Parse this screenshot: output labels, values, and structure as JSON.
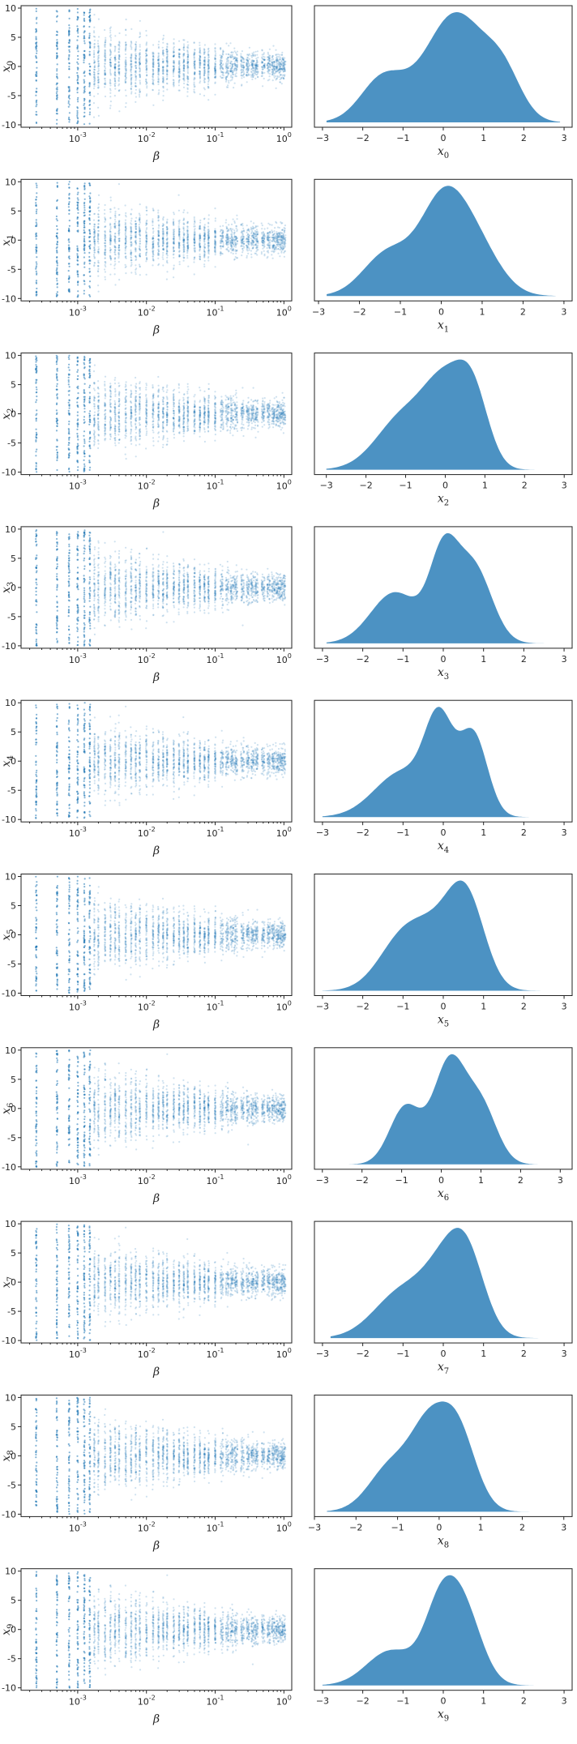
{
  "figure": {
    "rows": 10,
    "colors": {
      "point": "#1f77b4",
      "kde": "#1f77b4",
      "kde_fill_opacity": 0.8
    }
  },
  "chart_data": [
    {
      "type": "scatter",
      "xlabel": "β",
      "xscale": "log",
      "x_ticks": [
        "10^-3",
        "10^-2",
        "10^-1",
        "10^0"
      ],
      "y_ticks": [
        10,
        5,
        0,
        -5,
        -10
      ],
      "ylim": [
        -10,
        10
      ],
      "xlim": [
        0.00015,
        1.3
      ],
      "beta_levels": [
        0.00025,
        0.0005,
        0.00075,
        0.001,
        0.00125,
        0.0015,
        0.00175,
        0.002,
        0.0025,
        0.003,
        0.0035,
        0.004,
        0.005,
        0.006,
        0.007,
        0.008,
        0.01,
        0.0125,
        0.015,
        0.0175,
        0.02,
        0.025,
        0.03,
        0.035,
        0.04,
        0.05,
        0.06,
        0.07,
        0.08,
        0.1,
        0.125,
        0.15,
        0.175,
        0.2,
        0.25,
        0.3,
        0.35,
        0.4,
        0.5,
        0.6,
        0.7,
        0.8,
        0.9,
        1.0
      ],
      "panels": [
        {
          "ylabel": "x",
          "sub": "0"
        },
        {
          "ylabel": "x",
          "sub": "1"
        },
        {
          "ylabel": "x",
          "sub": "2"
        },
        {
          "ylabel": "x",
          "sub": "3"
        },
        {
          "ylabel": "x",
          "sub": "4"
        },
        {
          "ylabel": "x",
          "sub": "5"
        },
        {
          "ylabel": "x",
          "sub": "6"
        },
        {
          "ylabel": "x",
          "sub": "7"
        },
        {
          "ylabel": "x",
          "sub": "8"
        },
        {
          "ylabel": "x",
          "sub": "9"
        }
      ]
    },
    {
      "type": "area",
      "description_type": "kde",
      "x_ticks": [
        "-3",
        "-2",
        "-1",
        "0",
        "1",
        "2",
        "3"
      ],
      "panels": [
        {
          "xlabel": "x",
          "sub": "0",
          "xlim": [
            -3.2,
            3.2
          ],
          "range": [
            -2.9,
            2.9
          ],
          "components": [
            [
              -1.5,
              0.55,
              0.4
            ],
            [
              0.3,
              0.75,
              1.0
            ],
            [
              1.5,
              0.45,
              0.35
            ]
          ]
        },
        {
          "xlabel": "x",
          "sub": "1",
          "xlim": [
            -3.1,
            3.2
          ],
          "range": [
            -2.8,
            2.8
          ],
          "components": [
            [
              -1.3,
              0.6,
              0.5
            ],
            [
              0.0,
              0.55,
              0.95
            ],
            [
              0.8,
              0.6,
              0.6
            ]
          ]
        },
        {
          "xlabel": "x",
          "sub": "2",
          "xlim": [
            -3.3,
            3.2
          ],
          "range": [
            -3.0,
            2.9
          ],
          "components": [
            [
              -1.0,
              0.7,
              0.6
            ],
            [
              0.0,
              0.5,
              0.75
            ],
            [
              0.7,
              0.4,
              0.75
            ]
          ]
        },
        {
          "xlabel": "x",
          "sub": "3",
          "xlim": [
            -3.2,
            3.2
          ],
          "range": [
            -2.9,
            2.8
          ],
          "components": [
            [
              -1.2,
              0.6,
              0.5
            ],
            [
              0.0,
              0.35,
              0.8
            ],
            [
              0.75,
              0.45,
              0.75
            ]
          ]
        },
        {
          "xlabel": "x",
          "sub": "4",
          "xlim": [
            -3.2,
            3.2
          ],
          "range": [
            -3.0,
            3.0
          ],
          "components": [
            [
              -1.0,
              0.7,
              0.45
            ],
            [
              -0.1,
              0.35,
              0.85
            ],
            [
              0.75,
              0.35,
              0.8
            ]
          ]
        },
        {
          "xlabel": "x",
          "sub": "5",
          "xlim": [
            -3.2,
            3.2
          ],
          "range": [
            -3.0,
            2.8
          ],
          "components": [
            [
              -1.0,
              0.6,
              0.6
            ],
            [
              0.0,
              0.6,
              0.6
            ],
            [
              0.6,
              0.45,
              0.85
            ]
          ]
        },
        {
          "xlabel": "x",
          "sub": "6",
          "xlim": [
            -3.2,
            3.3
          ],
          "range": [
            -3.0,
            3.1
          ],
          "components": [
            [
              -0.9,
              0.4,
              0.55
            ],
            [
              0.2,
              0.4,
              0.95
            ],
            [
              1.0,
              0.4,
              0.55
            ]
          ]
        },
        {
          "xlabel": "x",
          "sub": "7",
          "xlim": [
            -3.2,
            3.2
          ],
          "range": [
            -2.8,
            2.9
          ],
          "components": [
            [
              -1.0,
              0.7,
              0.55
            ],
            [
              0.0,
              0.5,
              0.6
            ],
            [
              0.6,
              0.45,
              0.85
            ]
          ]
        },
        {
          "xlabel": "x",
          "sub": "8",
          "xlim": [
            -3.0,
            3.2
          ],
          "range": [
            -2.7,
            2.9
          ],
          "components": [
            [
              -1.1,
              0.55,
              0.5
            ],
            [
              -0.3,
              0.4,
              0.6
            ],
            [
              0.4,
              0.45,
              0.9
            ]
          ]
        },
        {
          "xlabel": "x",
          "sub": "9",
          "xlim": [
            -3.2,
            3.2
          ],
          "range": [
            -3.0,
            2.8
          ],
          "components": [
            [
              -1.3,
              0.6,
              0.4
            ],
            [
              -0.1,
              0.4,
              0.75
            ],
            [
              0.5,
              0.45,
              0.85
            ]
          ]
        }
      ]
    }
  ]
}
